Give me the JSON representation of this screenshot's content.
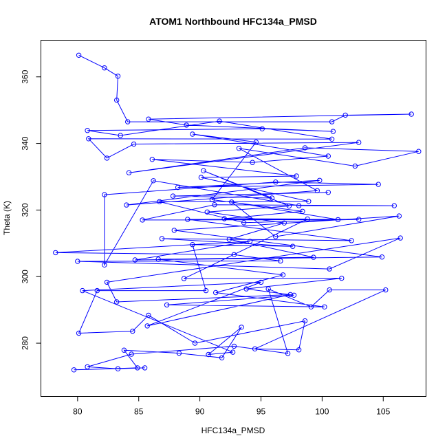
{
  "chart_data": {
    "type": "scatter",
    "mode": "lines+markers",
    "title": "ATOM1 Northbound HFC134a_PMSD",
    "xlabel": "HFC134a_PMSD",
    "ylabel": "Theta (K)",
    "xlim": [
      77,
      108.5
    ],
    "ylim": [
      264,
      371
    ],
    "xticks": [
      80,
      85,
      90,
      95,
      100,
      105
    ],
    "yticks": [
      280,
      300,
      320,
      340,
      360
    ],
    "grid": false,
    "legend": "none",
    "series_color": "#0000ff",
    "series": [
      {
        "points": [
          [
            80.1,
            366.5
          ],
          [
            82.2,
            362.7
          ],
          [
            83.3,
            360.2
          ],
          [
            83.2,
            353.0
          ],
          [
            84.1,
            346.5
          ],
          [
            100.8,
            346.5
          ],
          [
            101.9,
            348.5
          ],
          [
            107.3,
            348.8
          ],
          [
            85.8,
            347.3
          ],
          [
            88.9,
            345.5
          ],
          [
            100.9,
            343.6
          ],
          [
            95.1,
            344.4
          ],
          [
            80.8,
            343.9
          ],
          [
            83.5,
            342.4
          ],
          [
            91.6,
            346.7
          ],
          [
            100.8,
            341.3
          ],
          [
            80.9,
            341.4
          ],
          [
            82.4,
            335.6
          ],
          [
            84.6,
            339.8
          ],
          [
            103.0,
            340.3
          ],
          [
            84.2,
            331.2
          ],
          [
            98.6,
            338.7
          ],
          [
            107.9,
            337.6
          ],
          [
            102.7,
            333.2
          ],
          [
            93.2,
            338.5
          ],
          [
            99.6,
            325.8
          ],
          [
            84.0,
            321.5
          ],
          [
            99.8,
            328.9
          ],
          [
            88.2,
            326.8
          ],
          [
            104.6,
            327.7
          ],
          [
            96.2,
            328.4
          ],
          [
            82.2,
            324.6
          ],
          [
            82.2,
            303.5
          ],
          [
            86.2,
            328.8
          ],
          [
            98.1,
            321.3
          ],
          [
            105.9,
            321.3
          ],
          [
            91.2,
            321.6
          ],
          [
            85.3,
            317.0
          ],
          [
            101.3,
            317.1
          ],
          [
            92.6,
            322.4
          ],
          [
            96.2,
            312.0
          ],
          [
            106.3,
            318.2
          ],
          [
            87.9,
            313.9
          ],
          [
            104.9,
            305.9
          ],
          [
            84.7,
            305.0
          ],
          [
            94.1,
            310.6
          ],
          [
            78.2,
            307.2
          ],
          [
            92.8,
            306.6
          ],
          [
            96.6,
            304.7
          ],
          [
            80.0,
            304.6
          ],
          [
            100.6,
            302.3
          ],
          [
            106.4,
            311.6
          ],
          [
            82.4,
            298.3
          ],
          [
            83.2,
            292.4
          ],
          [
            97.4,
            294.6
          ],
          [
            85.7,
            285.2
          ],
          [
            95.0,
            298.3
          ],
          [
            80.4,
            295.8
          ],
          [
            92.7,
            277.3
          ],
          [
            90.7,
            276.6
          ],
          [
            93.4,
            284.8
          ],
          [
            91.8,
            275.6
          ],
          [
            88.3,
            277.0
          ],
          [
            83.8,
            277.9
          ],
          [
            84.9,
            272.6
          ],
          [
            79.7,
            272.0
          ],
          [
            85.5,
            272.6
          ],
          [
            83.3,
            272.3
          ],
          [
            80.8,
            272.9
          ],
          [
            84.4,
            276.7
          ],
          [
            92.8,
            279.1
          ],
          [
            97.2,
            276.9
          ],
          [
            95.6,
            296.3
          ],
          [
            99.1,
            290.9
          ],
          [
            100.6,
            296.0
          ],
          [
            105.2,
            296.0
          ],
          [
            94.5,
            278.3
          ],
          [
            98.1,
            278.0
          ],
          [
            98.6,
            286.7
          ],
          [
            89.6,
            280.0
          ],
          [
            85.8,
            288.4
          ],
          [
            84.5,
            283.6
          ],
          [
            80.1,
            283.0
          ],
          [
            81.6,
            295.8
          ],
          [
            90.5,
            295.8
          ],
          [
            89.4,
            309.6
          ],
          [
            97.6,
            309.1
          ],
          [
            86.9,
            311.4
          ],
          [
            102.4,
            310.8
          ],
          [
            89.0,
            317.2
          ],
          [
            103.0,
            317.2
          ],
          [
            93.6,
            316.2
          ],
          [
            86.7,
            322.5
          ],
          [
            98.9,
            322.6
          ],
          [
            90.1,
            329.8
          ],
          [
            97.9,
            330.2
          ],
          [
            86.1,
            335.2
          ],
          [
            94.3,
            334.3
          ],
          [
            100.5,
            336.2
          ],
          [
            89.4,
            342.8
          ],
          [
            94.6,
            340.4
          ],
          [
            91.0,
            323.1
          ],
          [
            98.4,
            319.6
          ],
          [
            92.0,
            317.4
          ],
          [
            98.8,
            317.3
          ],
          [
            88.7,
            299.4
          ],
          [
            101.6,
            299.5
          ],
          [
            93.8,
            296.3
          ],
          [
            97.7,
            294.4
          ],
          [
            87.3,
            291.5
          ],
          [
            100.2,
            290.9
          ],
          [
            91.3,
            295.2
          ],
          [
            96.8,
            300.5
          ],
          [
            86.6,
            305.2
          ],
          [
            99.3,
            305.8
          ],
          [
            92.4,
            311.2
          ],
          [
            96.9,
            316.1
          ],
          [
            90.6,
            319.4
          ],
          [
            97.3,
            321.2
          ],
          [
            90.3,
            331.8
          ],
          [
            95.9,
            323.6
          ],
          [
            87.8,
            324.2
          ],
          [
            100.5,
            325.3
          ]
        ]
      }
    ]
  }
}
